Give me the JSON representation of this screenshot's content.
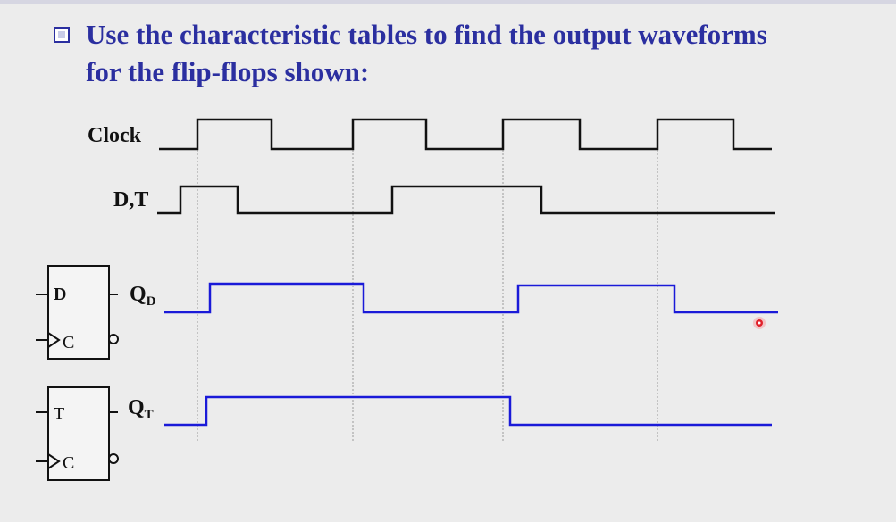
{
  "heading": {
    "line1": "Use the characteristic tables to find the output waveforms",
    "line2": "for the flip-flops shown:"
  },
  "signals": {
    "clock": "Clock",
    "input": "D,T",
    "qd_main": "Q",
    "qd_sub": "D",
    "qt_main": "Q",
    "qt_sub": "T"
  },
  "flipflops": {
    "d": {
      "input_label": "D",
      "clock_label": "C"
    },
    "t": {
      "input_label": "T",
      "clock_label": "C"
    }
  },
  "colors": {
    "heading": "#2b2fa0",
    "input_waveforms": "#111111",
    "output_waveforms": "#1a1ad8",
    "pointer": "#e0202a"
  }
}
